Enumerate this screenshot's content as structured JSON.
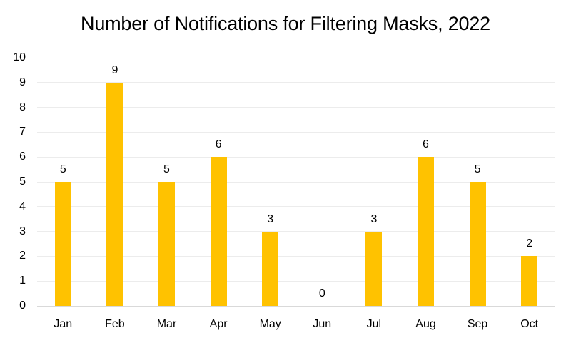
{
  "chart_data": {
    "type": "bar",
    "title": "Number of Notifications for Filtering Masks, 2022",
    "categories": [
      "Jan",
      "Feb",
      "Mar",
      "Apr",
      "May",
      "Jun",
      "Jul",
      "Aug",
      "Sep",
      "Oct"
    ],
    "values": [
      5,
      9,
      5,
      6,
      3,
      0,
      3,
      6,
      5,
      2
    ],
    "xlabel": "",
    "ylabel": "",
    "ylim": [
      0,
      10
    ],
    "yticks": [
      0,
      1,
      2,
      3,
      4,
      5,
      6,
      7,
      8,
      9,
      10
    ],
    "data_labels_shown": true,
    "legend_position": "none",
    "grid": "horizontal",
    "colors": {
      "bar": "#FFC200",
      "text": "#000000",
      "gridline": "#ECECEC",
      "axis_line": "#D9D9D9",
      "background": "#FFFFFF"
    }
  }
}
